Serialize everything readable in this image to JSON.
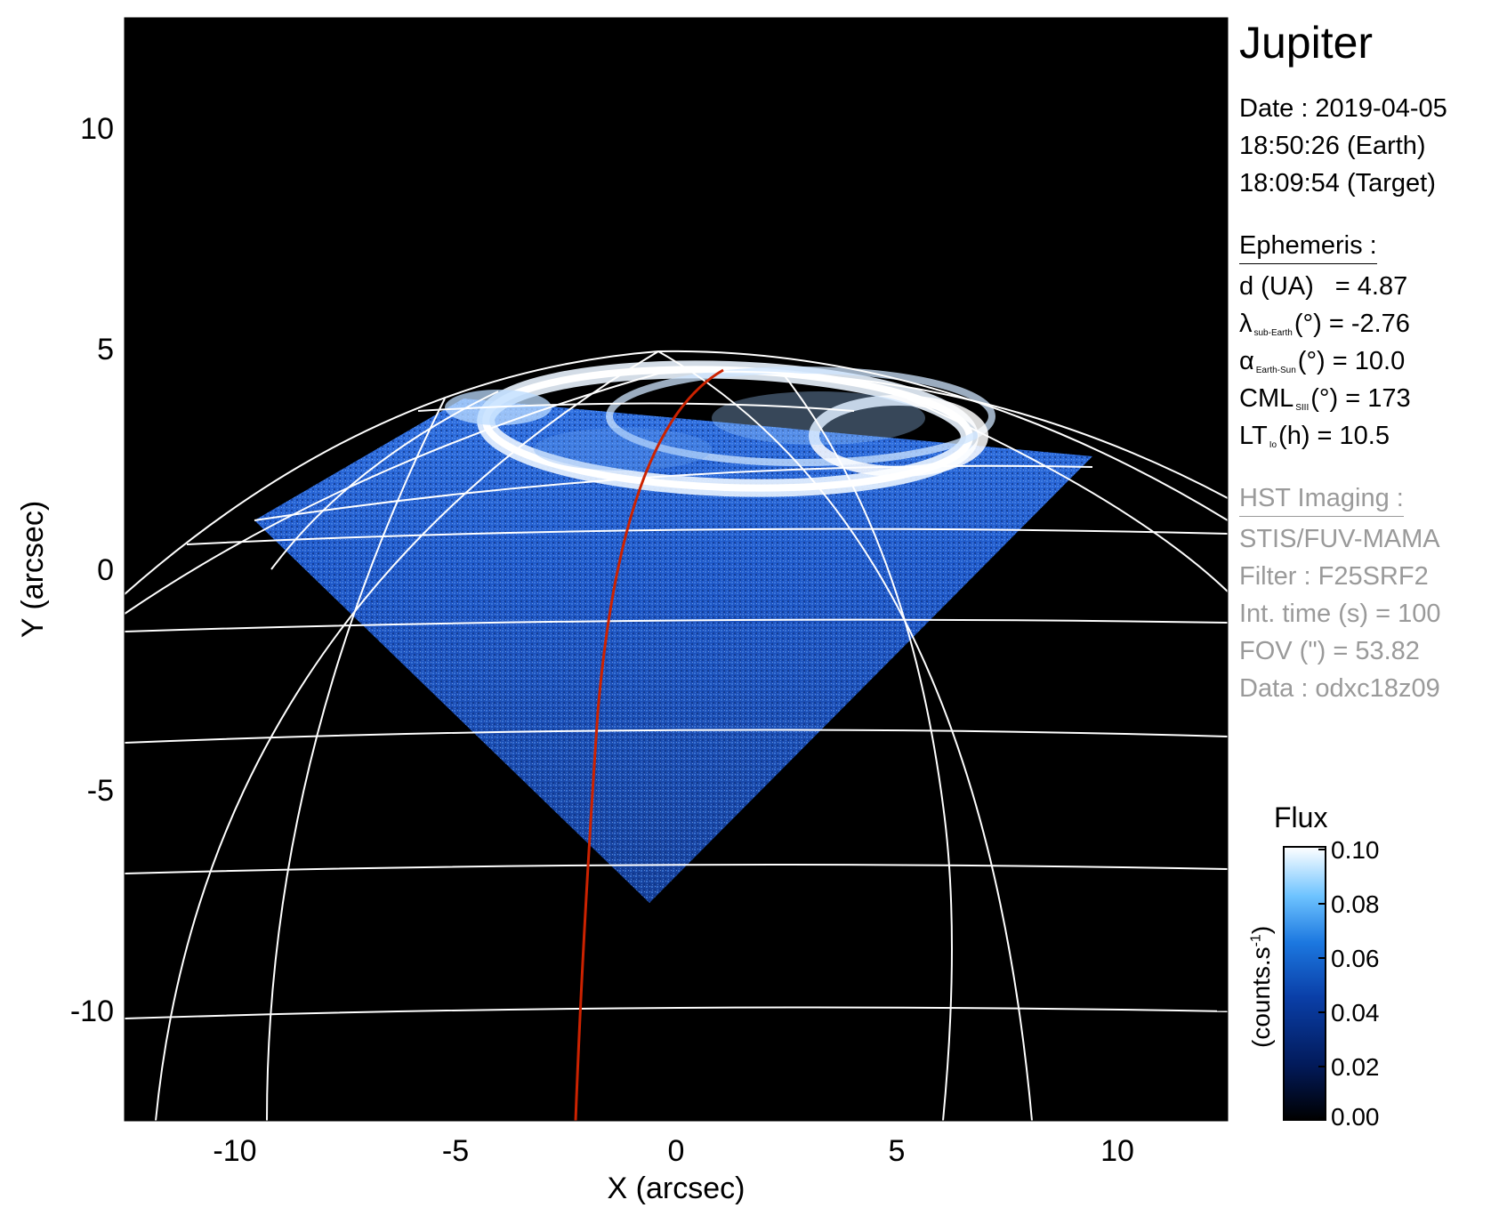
{
  "plot": {
    "xlabel": "X (arcsec)",
    "ylabel": "Y (arcsec)",
    "xlim": [
      -12.5,
      12.5
    ],
    "ylim": [
      -12.5,
      12.5
    ],
    "xticks": [
      "-10",
      "-5",
      "0",
      "5",
      "10"
    ],
    "yticks": [
      "10",
      "5",
      "0",
      "-5",
      "-10"
    ],
    "grid_color": "#ffffff",
    "meridian_color": "#cc2200",
    "background": "#000000"
  },
  "info": {
    "target": "Jupiter",
    "date_line": "Date : 2019-04-05",
    "earth_time": "18:50:26 (Earth)",
    "target_time": "18:09:54 (Target)",
    "ephemeris_header": "Ephemeris :",
    "eph": {
      "d_label": "d (UA)",
      "d_value": "= 4.87",
      "lat_symbol": "λ",
      "lat_sub": "sub-Earth",
      "lat_rest": "(°) = -2.76",
      "phase_symbol": "α",
      "phase_sub": "Earth-Sun",
      "phase_rest": "(°) = 10.0",
      "cml_symbol": "CML",
      "cml_sub": "SIII",
      "cml_rest": "(°) = 173",
      "lt_symbol": "LT",
      "lt_sub": "Io",
      "lt_rest": "(h) = 10.5"
    },
    "hst_header": "HST Imaging :",
    "instrument": "STIS/FUV-MAMA",
    "filter": "Filter : F25SRF2",
    "int_time": "Int. time (s) = 100",
    "fov": "FOV (\") = 53.82",
    "data_id": "Data : odxc18z09"
  },
  "colorbar": {
    "title": "Flux",
    "unit_base": "(counts.s",
    "unit_exp": "-1",
    "unit_close": ")",
    "ticks": [
      "0.10",
      "0.08",
      "0.06",
      "0.04",
      "0.02",
      "0.00"
    ],
    "colors": [
      "#000000",
      "#021a5a",
      "#0a3fa8",
      "#1c78e0",
      "#6ec3ff",
      "#ffffff"
    ]
  }
}
